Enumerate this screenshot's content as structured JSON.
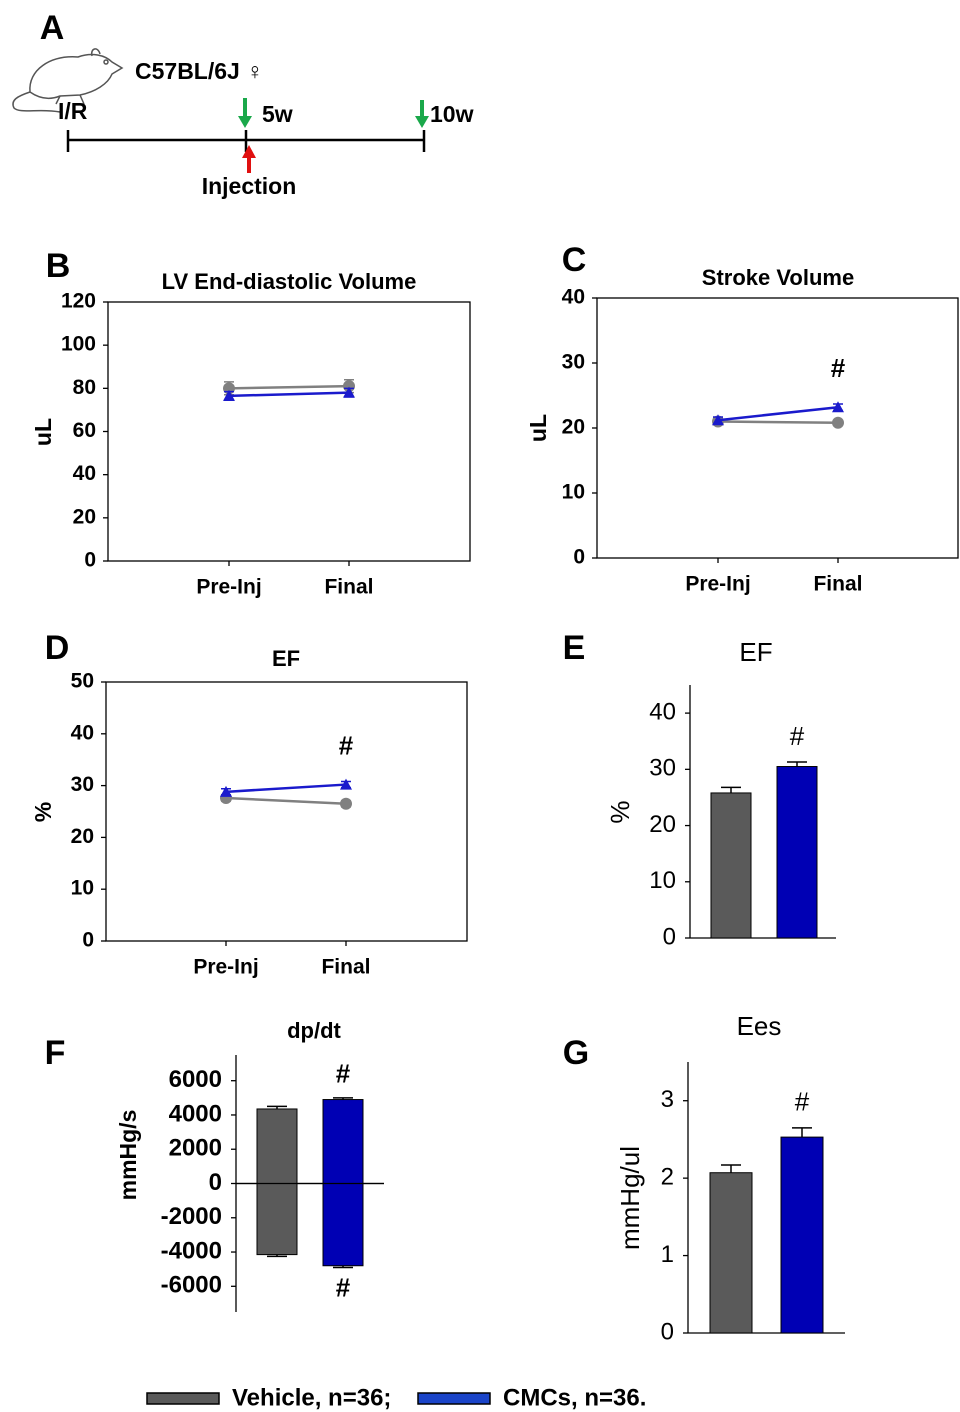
{
  "panel_a": {
    "label": "A",
    "strain": "C57BL/6J ♀",
    "start": "I/R",
    "mid": "5w",
    "end": "10w",
    "injection": "Injection"
  },
  "chart_data": [
    {
      "type": "line",
      "panel_label": "B",
      "title": "LV End-diastolic Volume",
      "y_label": "uL",
      "categories": [
        "Pre-Inj",
        "Final"
      ],
      "ylim": [
        0,
        120
      ],
      "yticks": [
        0,
        20,
        40,
        60,
        80,
        100,
        120
      ],
      "frame": true,
      "series": [
        {
          "color": "#808080",
          "marker": "circle",
          "values": [
            80,
            81
          ],
          "errors": [
            3,
            3
          ]
        },
        {
          "color": "#1a1acc",
          "marker": "triangle",
          "values": [
            76.5,
            78
          ],
          "errors": [
            2,
            2
          ]
        }
      ],
      "annotations": [
        null,
        null
      ]
    },
    {
      "type": "line",
      "panel_label": "C",
      "title": "Stroke Volume",
      "y_label": "uL",
      "categories": [
        "Pre-Inj",
        "Final"
      ],
      "ylim": [
        0,
        40
      ],
      "yticks": [
        0,
        10,
        20,
        30,
        40
      ],
      "frame": true,
      "series": [
        {
          "color": "#808080",
          "marker": "circle",
          "values": [
            21,
            20.8
          ],
          "errors": [
            0.5,
            0.4
          ]
        },
        {
          "color": "#1a1acc",
          "marker": "triangle",
          "values": [
            21.2,
            23.2
          ],
          "errors": [
            0.5,
            0.5
          ]
        }
      ],
      "annotations": [
        null,
        "#"
      ]
    },
    {
      "type": "line",
      "panel_label": "D",
      "title": "EF",
      "y_label": "%",
      "categories": [
        "Pre-Inj",
        "Final"
      ],
      "ylim": [
        0,
        50
      ],
      "yticks": [
        0,
        10,
        20,
        30,
        40,
        50
      ],
      "frame": true,
      "series": [
        {
          "color": "#808080",
          "marker": "circle",
          "values": [
            27.6,
            26.5
          ],
          "errors": [
            0.6,
            0.6
          ]
        },
        {
          "color": "#1a1acc",
          "marker": "triangle",
          "values": [
            28.8,
            30.2
          ],
          "errors": [
            0.6,
            0.6
          ]
        }
      ],
      "annotations": [
        null,
        "#"
      ]
    },
    {
      "type": "bar",
      "panel_label": "E",
      "title": "EF",
      "y_label": "%",
      "ylim": [
        0,
        45
      ],
      "yticks": [
        0,
        10,
        20,
        30,
        40
      ],
      "frame": false,
      "colors": [
        "#5a5a5a",
        "#0000b4"
      ],
      "values": [
        25.8,
        30.5
      ],
      "errors": [
        1,
        0.8
      ],
      "annotations": [
        null,
        "#"
      ]
    },
    {
      "type": "split_bar",
      "panel_label": "F",
      "title": "dp/dt",
      "y_label": "mmHg/s",
      "ylim": [
        -7500,
        7500
      ],
      "yticks": [
        -6000,
        -4000,
        -2000,
        0,
        2000,
        4000,
        6000
      ],
      "frame": false,
      "colors": [
        "#5a5a5a",
        "#0000b4"
      ],
      "series": [
        {
          "values": [
            4350,
            4900
          ],
          "errors": [
            150,
            100
          ],
          "annotations": [
            null,
            "#"
          ]
        },
        {
          "values": [
            -4150,
            -4800
          ],
          "errors": [
            100,
            100
          ],
          "annotations": [
            null,
            "#"
          ]
        }
      ]
    },
    {
      "type": "bar",
      "panel_label": "G",
      "title": "Ees",
      "y_label": "mmHg/ul",
      "ylim": [
        0,
        3.5
      ],
      "yticks": [
        0,
        1,
        2,
        3
      ],
      "frame": false,
      "colors": [
        "#5a5a5a",
        "#0000b4"
      ],
      "values": [
        2.07,
        2.53
      ],
      "errors": [
        0.1,
        0.12
      ],
      "annotations": [
        null,
        "#"
      ]
    }
  ],
  "legend": [
    {
      "label": "Vehicle, n=36;",
      "color": "#5a5a5a"
    },
    {
      "label": "CMCs, n=36.",
      "color": "#1a44c8"
    }
  ]
}
